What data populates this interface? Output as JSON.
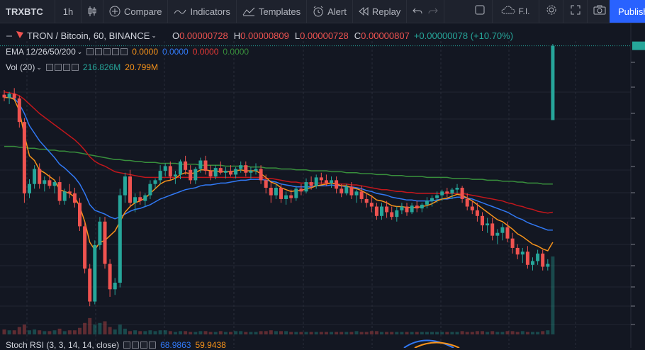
{
  "toolbar": {
    "symbol": "TRXBTC",
    "interval": "1h",
    "compare": "Compare",
    "indicators": "Indicators",
    "templates": "Templates",
    "alert": "Alert",
    "replay": "Replay",
    "layout_name": "F.I.",
    "publish": "Publish"
  },
  "legend": {
    "title": "TRON / Bitcoin, 60, BINANCE",
    "o_label": "O",
    "o_value": "0.00000728",
    "h_label": "H",
    "h_value": "0.00000809",
    "l_label": "L",
    "l_value": "0.00000728",
    "c_label": "C",
    "c_value": "0.00000807",
    "change": "+0.00000078 (+10.70%)",
    "ema_label": "EMA 12/26/50/200",
    "ema_values": [
      "0.0000",
      "0.0000",
      "0.0000",
      "0.0000"
    ],
    "vol_label": "Vol (20)",
    "vol_value1": "216.826M",
    "vol_value2": "20.799M",
    "stoch_label": "Stoch RSI (3, 3, 14, 14, close)",
    "stoch_value1": "68.9863",
    "stoch_value2": "59.9438"
  },
  "colors": {
    "background": "#131722",
    "up": "#26a69a",
    "down": "#ef5350",
    "ema12": "#f7931a",
    "ema26": "#3179f5",
    "ema50": "#c2171c",
    "ema200": "#388e3c",
    "accent": "#2962ff"
  },
  "chart_data": {
    "type": "candlestick",
    "symbol": "TRXBTC",
    "interval": "60",
    "exchange": "BINANCE",
    "candles": [
      [
        7.55e-06,
        7.6e-06,
        7.48e-06,
        7.52e-06
      ],
      [
        7.52e-06,
        7.58e-06,
        7.45e-06,
        7.56e-06
      ],
      [
        7.56e-06,
        7.62e-06,
        7.5e-06,
        7.51e-06
      ],
      [
        7.51e-06,
        7.54e-06,
        7.2e-06,
        7.26e-06
      ],
      [
        7.26e-06,
        7.3e-06,
        6.4e-06,
        6.5e-06
      ],
      [
        6.5e-06,
        6.65e-06,
        6.45e-06,
        6.6e-06
      ],
      [
        6.6e-06,
        6.8e-06,
        6.55e-06,
        6.76e-06
      ],
      [
        6.76e-06,
        6.82e-06,
        6.55e-06,
        6.6e-06
      ],
      [
        6.6e-06,
        6.68e-06,
        6.52e-06,
        6.64e-06
      ],
      [
        6.64e-06,
        6.7e-06,
        6.55e-06,
        6.58e-06
      ],
      [
        6.58e-06,
        6.64e-06,
        6.5e-06,
        6.62e-06
      ],
      [
        6.62e-06,
        6.68e-06,
        6.38e-06,
        6.42e-06
      ],
      [
        6.42e-06,
        6.55e-06,
        6.38e-06,
        6.52e-06
      ],
      [
        6.52e-06,
        6.6e-06,
        6.45e-06,
        6.5e-06
      ],
      [
        6.5e-06,
        6.56e-06,
        6.35e-06,
        6.4e-06
      ],
      [
        6.4e-06,
        6.45e-06,
        6.1e-06,
        6.15e-06
      ],
      [
        6.15e-06,
        6.2e-06,
        5.65e-06,
        5.7e-06
      ],
      [
        5.7e-06,
        5.75e-06,
        5.3e-06,
        5.35e-06
      ],
      [
        5.35e-06,
        6e-06,
        5.32e-06,
        5.95e-06
      ],
      [
        5.95e-06,
        6.25e-06,
        5.9e-06,
        6.2e-06
      ],
      [
        6.2e-06,
        6.25e-06,
        5.7e-06,
        5.75e-06
      ],
      [
        5.75e-06,
        5.8e-06,
        5.4e-06,
        5.48e-06
      ],
      [
        5.48e-06,
        5.6e-06,
        5.42e-06,
        5.55e-06
      ],
      [
        5.55e-06,
        6.55e-06,
        5.5e-06,
        6.48e-06
      ],
      [
        6.48e-06,
        6.72e-06,
        6.4e-06,
        6.68e-06
      ],
      [
        6.68e-06,
        6.75e-06,
        6.35e-06,
        6.4e-06
      ],
      [
        6.4e-06,
        6.5e-06,
        6.3e-06,
        6.46e-06
      ],
      [
        6.46e-06,
        6.52e-06,
        6.38e-06,
        6.42e-06
      ],
      [
        6.42e-06,
        6.5e-06,
        6.36e-06,
        6.48e-06
      ],
      [
        6.48e-06,
        6.64e-06,
        6.44e-06,
        6.6e-06
      ],
      [
        6.6e-06,
        6.66e-06,
        6.55e-06,
        6.64e-06
      ],
      [
        6.64e-06,
        6.8e-06,
        6.6e-06,
        6.74e-06
      ],
      [
        6.74e-06,
        6.82e-06,
        6.68e-06,
        6.79e-06
      ],
      [
        6.79e-06,
        6.84e-06,
        6.64e-06,
        6.68e-06
      ],
      [
        6.68e-06,
        6.74e-06,
        6.6e-06,
        6.7e-06
      ],
      [
        6.7e-06,
        6.86e-06,
        6.65e-06,
        6.84e-06
      ],
      [
        6.84e-06,
        6.9e-06,
        6.7e-06,
        6.75e-06
      ],
      [
        6.75e-06,
        6.8e-06,
        6.6e-06,
        6.64e-06
      ],
      [
        6.64e-06,
        6.78e-06,
        6.6e-06,
        6.76e-06
      ],
      [
        6.76e-06,
        6.88e-06,
        6.72e-06,
        6.85e-06
      ],
      [
        6.85e-06,
        6.9e-06,
        6.7e-06,
        6.74e-06
      ],
      [
        6.74e-06,
        6.8e-06,
        6.64e-06,
        6.68e-06
      ],
      [
        6.68e-06,
        6.8e-06,
        6.65e-06,
        6.77e-06
      ],
      [
        6.77e-06,
        6.84e-06,
        6.7e-06,
        6.72e-06
      ],
      [
        6.72e-06,
        6.78e-06,
        6.66e-06,
        6.74e-06
      ],
      [
        6.74e-06,
        6.8e-06,
        6.68e-06,
        6.7e-06
      ],
      [
        6.7e-06,
        6.78e-06,
        6.66e-06,
        6.76e-06
      ],
      [
        6.76e-06,
        6.84e-06,
        6.72e-06,
        6.8e-06
      ],
      [
        6.8e-06,
        6.84e-06,
        6.68e-06,
        6.72e-06
      ],
      [
        6.72e-06,
        6.78e-06,
        6.66e-06,
        6.74e-06
      ],
      [
        6.74e-06,
        6.82e-06,
        6.7e-06,
        6.76e-06
      ],
      [
        6.76e-06,
        6.8e-06,
        6.6e-06,
        6.64e-06
      ],
      [
        6.64e-06,
        6.7e-06,
        6.5e-06,
        6.56e-06
      ],
      [
        6.56e-06,
        6.62e-06,
        6.4e-06,
        6.48e-06
      ],
      [
        6.48e-06,
        6.6e-06,
        6.44e-06,
        6.56e-06
      ],
      [
        6.56e-06,
        6.6e-06,
        6.4e-06,
        6.44e-06
      ],
      [
        6.44e-06,
        6.52e-06,
        6.38e-06,
        6.48e-06
      ],
      [
        6.48e-06,
        6.54e-06,
        6.4e-06,
        6.45e-06
      ],
      [
        6.45e-06,
        6.58e-06,
        6.42e-06,
        6.55e-06
      ],
      [
        6.55e-06,
        6.6e-06,
        6.48e-06,
        6.52e-06
      ],
      [
        6.52e-06,
        6.66e-06,
        6.5e-06,
        6.62e-06
      ],
      [
        6.62e-06,
        6.68e-06,
        6.54e-06,
        6.58e-06
      ],
      [
        6.58e-06,
        6.7e-06,
        6.55e-06,
        6.67e-06
      ],
      [
        6.67e-06,
        6.72e-06,
        6.6e-06,
        6.64e-06
      ],
      [
        6.64e-06,
        6.7e-06,
        6.58e-06,
        6.61e-06
      ],
      [
        6.61e-06,
        6.68e-06,
        6.56e-06,
        6.64e-06
      ],
      [
        6.64e-06,
        6.68e-06,
        6.5e-06,
        6.55e-06
      ],
      [
        6.55e-06,
        6.6e-06,
        6.46e-06,
        6.5e-06
      ],
      [
        6.5e-06,
        6.6e-06,
        6.48e-06,
        6.57e-06
      ],
      [
        6.57e-06,
        6.62e-06,
        6.44e-06,
        6.48e-06
      ],
      [
        6.48e-06,
        6.54e-06,
        6.4e-06,
        6.52e-06
      ],
      [
        6.52e-06,
        6.58e-06,
        6.4e-06,
        6.44e-06
      ],
      [
        6.44e-06,
        6.5e-06,
        6.35e-06,
        6.4e-06
      ],
      [
        6.4e-06,
        6.48e-06,
        6.3e-06,
        6.36e-06
      ],
      [
        6.36e-06,
        6.4e-06,
        6.22e-06,
        6.26e-06
      ],
      [
        6.26e-06,
        6.4e-06,
        6.22e-06,
        6.36e-06
      ],
      [
        6.36e-06,
        6.42e-06,
        6.24e-06,
        6.3e-06
      ],
      [
        6.3e-06,
        6.36e-06,
        6.22e-06,
        6.25e-06
      ],
      [
        6.25e-06,
        6.36e-06,
        6.2e-06,
        6.32e-06
      ],
      [
        6.32e-06,
        6.4e-06,
        6.28e-06,
        6.36e-06
      ],
      [
        6.36e-06,
        6.4e-06,
        6.26e-06,
        6.3e-06
      ],
      [
        6.3e-06,
        6.4e-06,
        6.28e-06,
        6.37e-06
      ],
      [
        6.37e-06,
        6.42e-06,
        6.3e-06,
        6.34e-06
      ],
      [
        6.34e-06,
        6.4e-06,
        6.3e-06,
        6.38e-06
      ],
      [
        6.38e-06,
        6.46e-06,
        6.34e-06,
        6.42e-06
      ],
      [
        6.42e-06,
        6.48e-06,
        6.36e-06,
        6.45e-06
      ],
      [
        6.45e-06,
        6.52e-06,
        6.4e-06,
        6.48e-06
      ],
      [
        6.48e-06,
        6.54e-06,
        6.42e-06,
        6.52e-06
      ],
      [
        6.52e-06,
        6.56e-06,
        6.46e-06,
        6.5e-06
      ],
      [
        6.5e-06,
        6.56e-06,
        6.44e-06,
        6.54e-06
      ],
      [
        6.54e-06,
        6.6e-06,
        6.5e-06,
        6.56e-06
      ],
      [
        6.56e-06,
        6.58e-06,
        6.4e-06,
        6.44e-06
      ],
      [
        6.44e-06,
        6.5e-06,
        6.32e-06,
        6.36e-06
      ],
      [
        6.36e-06,
        6.42e-06,
        6.28e-06,
        6.32e-06
      ],
      [
        6.32e-06,
        6.4e-06,
        6.2e-06,
        6.26e-06
      ],
      [
        6.26e-06,
        6.3e-06,
        6.1e-06,
        6.16e-06
      ],
      [
        6.16e-06,
        6.24e-06,
        6.08e-06,
        6.18e-06
      ],
      [
        6.18e-06,
        6.24e-06,
        6e-06,
        6.05e-06
      ],
      [
        6.05e-06,
        6.12e-06,
        5.96e-06,
        6.08e-06
      ],
      [
        6.08e-06,
        6.18e-06,
        6e-06,
        6.14e-06
      ],
      [
        6.14e-06,
        6.2e-06,
        5.98e-06,
        6.02e-06
      ],
      [
        6.02e-06,
        6.08e-06,
        5.86e-06,
        5.92e-06
      ],
      [
        5.92e-06,
        5.96e-06,
        5.8e-06,
        5.85e-06
      ],
      [
        5.85e-06,
        5.92e-06,
        5.76e-06,
        5.88e-06
      ],
      [
        5.88e-06,
        5.94e-06,
        5.7e-06,
        5.74e-06
      ],
      [
        5.74e-06,
        5.82e-06,
        5.68e-06,
        5.78e-06
      ],
      [
        5.78e-06,
        5.9e-06,
        5.74e-06,
        5.86e-06
      ],
      [
        5.86e-06,
        5.9e-06,
        5.68e-06,
        5.72e-06
      ],
      [
        5.72e-06,
        5.8e-06,
        5.68e-06,
        5.75e-06
      ],
      [
        7.28e-06,
        8.09e-06,
        7.28e-06,
        8.07e-06
      ]
    ],
    "ema": {
      "ema12": [
        7.52e-06,
        7.52e-06,
        7.5e-06,
        7.38e-06,
        7.12e-06,
        6.9e-06,
        6.85e-06,
        6.75e-06,
        6.72e-06,
        6.68e-06,
        6.64e-06,
        6.54e-06,
        6.52e-06,
        6.5e-06,
        6.46e-06,
        6.36e-06,
        6.2e-06,
        5.98e-06,
        5.9e-06,
        5.98e-06,
        6e-06,
        6.05e-06,
        6.1e-06,
        6.2e-06,
        6.3e-06,
        6.36e-06,
        6.4e-06,
        6.42e-06,
        6.45e-06,
        6.5e-06,
        6.55e-06,
        6.6e-06,
        6.63e-06,
        6.64e-06,
        6.66e-06,
        6.7e-06,
        6.72e-06,
        6.71e-06,
        6.72e-06,
        6.75e-06,
        6.75e-06,
        6.74e-06,
        6.74e-06,
        6.73e-06,
        6.73e-06,
        6.73e-06,
        6.74e-06,
        6.75e-06,
        6.74e-06,
        6.74e-06,
        6.74e-06,
        6.71e-06,
        6.67e-06,
        6.62e-06,
        6.6e-06,
        6.56e-06,
        6.54e-06,
        6.52e-06,
        6.53e-06,
        6.53e-06,
        6.55e-06,
        6.56e-06,
        6.58e-06,
        6.59e-06,
        6.6e-06,
        6.61e-06,
        6.6e-06,
        6.58e-06,
        6.58e-06,
        6.56e-06,
        6.55e-06,
        6.53e-06,
        6.5e-06,
        6.47e-06,
        6.43e-06,
        6.42e-06,
        6.4e-06,
        6.37e-06,
        6.36e-06,
        6.36e-06,
        6.35e-06,
        6.35e-06,
        6.35e-06,
        6.36e-06,
        6.37e-06,
        6.39e-06,
        6.42e-06,
        6.44e-06,
        6.45e-06,
        6.47e-06,
        6.49e-06,
        6.48e-06,
        6.45e-06,
        6.42e-06,
        6.38e-06,
        6.34e-06,
        6.3e-06,
        6.26e-06,
        6.22e-06,
        6.2e-06,
        6.16e-06,
        6.12e-06,
        6.07e-06,
        6.04e-06,
        6e-06,
        5.96e-06,
        5.94e-06,
        5.91e-06,
        5.89e-06,
        5.98e-06
      ],
      "ema26": [
        7.52e-06,
        7.52e-06,
        7.51e-06,
        7.45e-06,
        7.35e-06,
        7.22e-06,
        7.14e-06,
        7.06e-06,
        7e-06,
        6.94e-06,
        6.88e-06,
        6.81e-06,
        6.77e-06,
        6.72e-06,
        6.67e-06,
        6.6e-06,
        6.5e-06,
        6.38e-06,
        6.32e-06,
        6.3e-06,
        6.28e-06,
        6.25e-06,
        6.23e-06,
        6.25e-06,
        6.28e-06,
        6.31e-06,
        6.33e-06,
        6.34e-06,
        6.36e-06,
        6.38e-06,
        6.41e-06,
        6.44e-06,
        6.46e-06,
        6.48e-06,
        6.5e-06,
        6.52e-06,
        6.54e-06,
        6.55e-06,
        6.56e-06,
        6.58e-06,
        6.59e-06,
        6.59e-06,
        6.6e-06,
        6.61e-06,
        6.61e-06,
        6.62e-06,
        6.63e-06,
        6.64e-06,
        6.64e-06,
        6.65e-06,
        6.65e-06,
        6.65e-06,
        6.64e-06,
        6.63e-06,
        6.62e-06,
        6.6e-06,
        6.59e-06,
        6.58e-06,
        6.57e-06,
        6.57e-06,
        6.57e-06,
        6.57e-06,
        6.58e-06,
        6.58e-06,
        6.58e-06,
        6.59e-06,
        6.58e-06,
        6.58e-06,
        6.57e-06,
        6.57e-06,
        6.56e-06,
        6.55e-06,
        6.53e-06,
        6.52e-06,
        6.5e-06,
        6.49e-06,
        6.48e-06,
        6.46e-06,
        6.45e-06,
        6.44e-06,
        6.43e-06,
        6.43e-06,
        6.42e-06,
        6.42e-06,
        6.42e-06,
        6.42e-06,
        6.43e-06,
        6.44e-06,
        6.44e-06,
        6.45e-06,
        6.46e-06,
        6.46e-06,
        6.45e-06,
        6.44e-06,
        6.42e-06,
        6.4e-06,
        6.38e-06,
        6.36e-06,
        6.34e-06,
        6.32e-06,
        6.3e-06,
        6.27e-06,
        6.24e-06,
        6.22e-06,
        6.19e-06,
        6.17e-06,
        6.15e-06,
        6.13e-06,
        6.11e-06,
        6.11e-06
      ],
      "ema50": [
        7.58e-06,
        7.57e-06,
        7.56e-06,
        7.54e-06,
        7.5e-06,
        7.45e-06,
        7.4e-06,
        7.35e-06,
        7.31e-06,
        7.27e-06,
        7.23e-06,
        7.19e-06,
        7.15e-06,
        7.11e-06,
        7.07e-06,
        7.02e-06,
        6.96e-06,
        6.89e-06,
        6.84e-06,
        6.81e-06,
        6.79e-06,
        6.76e-06,
        6.73e-06,
        6.72e-06,
        6.71e-06,
        6.7e-06,
        6.69e-06,
        6.68e-06,
        6.67e-06,
        6.67e-06,
        6.67e-06,
        6.67e-06,
        6.67e-06,
        6.67e-06,
        6.67e-06,
        6.67e-06,
        6.67e-06,
        6.67e-06,
        6.67e-06,
        6.67e-06,
        6.67e-06,
        6.67e-06,
        6.67e-06,
        6.67e-06,
        6.67e-06,
        6.67e-06,
        6.67e-06,
        6.67e-06,
        6.67e-06,
        6.67e-06,
        6.67e-06,
        6.67e-06,
        6.66e-06,
        6.66e-06,
        6.65e-06,
        6.64e-06,
        6.63e-06,
        6.62e-06,
        6.62e-06,
        6.61e-06,
        6.61e-06,
        6.61e-06,
        6.61e-06,
        6.61e-06,
        6.61e-06,
        6.61e-06,
        6.6e-06,
        6.6e-06,
        6.6e-06,
        6.59e-06,
        6.59e-06,
        6.58e-06,
        6.57e-06,
        6.56e-06,
        6.55e-06,
        6.54e-06,
        6.54e-06,
        6.53e-06,
        6.52e-06,
        6.52e-06,
        6.51e-06,
        6.51e-06,
        6.5e-06,
        6.5e-06,
        6.5e-06,
        6.5e-06,
        6.5e-06,
        6.5e-06,
        6.5e-06,
        6.5e-06,
        6.5e-06,
        6.5e-06,
        6.49e-06,
        6.48e-06,
        6.47e-06,
        6.46e-06,
        6.45e-06,
        6.44e-06,
        6.43e-06,
        6.42e-06,
        6.4e-06,
        6.39e-06,
        6.37e-06,
        6.36e-06,
        6.34e-06,
        6.33e-06,
        6.31e-06,
        6.3e-06,
        6.29e-06,
        6.3e-06
      ],
      "ema200": [
        7e-06,
        7e-06,
        7e-06,
        6.99e-06,
        6.99e-06,
        6.98e-06,
        6.98e-06,
        6.97e-06,
        6.97e-06,
        6.96e-06,
        6.96e-06,
        6.95e-06,
        6.95e-06,
        6.94e-06,
        6.94e-06,
        6.93e-06,
        6.92e-06,
        6.91e-06,
        6.9e-06,
        6.89e-06,
        6.88e-06,
        6.87e-06,
        6.86e-06,
        6.86e-06,
        6.85e-06,
        6.85e-06,
        6.84e-06,
        6.84e-06,
        6.83e-06,
        6.83e-06,
        6.83e-06,
        6.82e-06,
        6.82e-06,
        6.82e-06,
        6.82e-06,
        6.81e-06,
        6.81e-06,
        6.81e-06,
        6.81e-06,
        6.8e-06,
        6.8e-06,
        6.8e-06,
        6.8e-06,
        6.8e-06,
        6.79e-06,
        6.79e-06,
        6.79e-06,
        6.79e-06,
        6.79e-06,
        6.78e-06,
        6.78e-06,
        6.78e-06,
        6.77e-06,
        6.77e-06,
        6.77e-06,
        6.76e-06,
        6.76e-06,
        6.76e-06,
        6.75e-06,
        6.75e-06,
        6.75e-06,
        6.74e-06,
        6.74e-06,
        6.74e-06,
        6.74e-06,
        6.73e-06,
        6.73e-06,
        6.73e-06,
        6.72e-06,
        6.72e-06,
        6.72e-06,
        6.71e-06,
        6.71e-06,
        6.71e-06,
        6.7e-06,
        6.7e-06,
        6.7e-06,
        6.69e-06,
        6.69e-06,
        6.69e-06,
        6.68e-06,
        6.68e-06,
        6.68e-06,
        6.68e-06,
        6.67e-06,
        6.67e-06,
        6.67e-06,
        6.67e-06,
        6.67e-06,
        6.66e-06,
        6.66e-06,
        6.66e-06,
        6.66e-06,
        6.65e-06,
        6.65e-06,
        6.65e-06,
        6.64e-06,
        6.64e-06,
        6.64e-06,
        6.63e-06,
        6.63e-06,
        6.63e-06,
        6.62e-06,
        6.62e-06,
        6.61e-06,
        6.61e-06,
        6.61e-06,
        6.6e-06,
        6.6e-06,
        6.6e-06
      ]
    },
    "volume": [
      6,
      5,
      5,
      9,
      12,
      5,
      6,
      5,
      4,
      4,
      5,
      7,
      4,
      5,
      5,
      8,
      14,
      20,
      12,
      14,
      16,
      9,
      6,
      12,
      7,
      4,
      5,
      4,
      4,
      5,
      4,
      5,
      5,
      4,
      3,
      4,
      4,
      3,
      3,
      4,
      4,
      3,
      3,
      4,
      3,
      3,
      4,
      4,
      3,
      3,
      3,
      4,
      4,
      5,
      4,
      4,
      4,
      3,
      3,
      3,
      3,
      3,
      3,
      3,
      3,
      3,
      3,
      3,
      3,
      3,
      4,
      3,
      3,
      4,
      4,
      3,
      3,
      3,
      3,
      3,
      3,
      3,
      3,
      3,
      3,
      3,
      3,
      3,
      3,
      3,
      3,
      4,
      3,
      3,
      4,
      4,
      3,
      4,
      3,
      3,
      4,
      4,
      3,
      4,
      3,
      3,
      3,
      4,
      5,
      95
    ],
    "ylim": [
      5e-06,
      8.12e-06
    ],
    "grid": true
  }
}
